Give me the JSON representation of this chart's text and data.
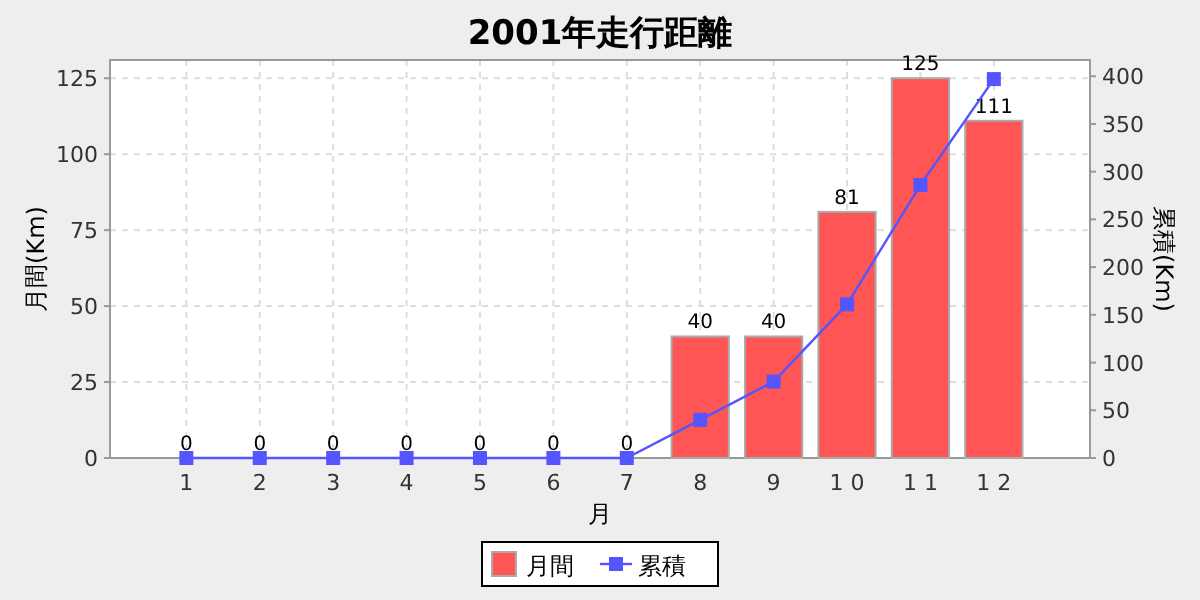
{
  "chart_data": {
    "type": "bar",
    "title": "2001年走行距離",
    "xlabel": "月",
    "ylabel": "月間(Km)",
    "y2label": "累積(Km)",
    "categories": [
      "1",
      "2",
      "3",
      "4",
      "5",
      "6",
      "7",
      "8",
      "9",
      "1 0",
      "1 1",
      "1 2"
    ],
    "series": [
      {
        "name": "月間",
        "color": "#ff5555",
        "values": [
          0,
          0,
          0,
          0,
          0,
          0,
          0,
          40,
          40,
          81,
          125,
          111
        ],
        "value_labels": [
          "0",
          "0",
          "0",
          "0",
          "0",
          "0",
          "0",
          "40",
          "40",
          "81",
          "125",
          "111"
        ]
      },
      {
        "name": "累積",
        "type": "line",
        "axis": "y2",
        "color": "#5555ff",
        "marker": "square",
        "values": [
          0,
          0,
          0,
          0,
          0,
          0,
          0,
          40,
          80,
          161,
          286,
          397
        ]
      }
    ],
    "ylim": [
      0,
      131
    ],
    "yticks": [
      0,
      25,
      50,
      75,
      100,
      125
    ],
    "y2lim": [
      0,
      417
    ],
    "y2ticks": [
      0,
      50,
      100,
      150,
      200,
      250,
      300,
      350,
      400
    ],
    "grid": true,
    "legend": "bottom"
  }
}
